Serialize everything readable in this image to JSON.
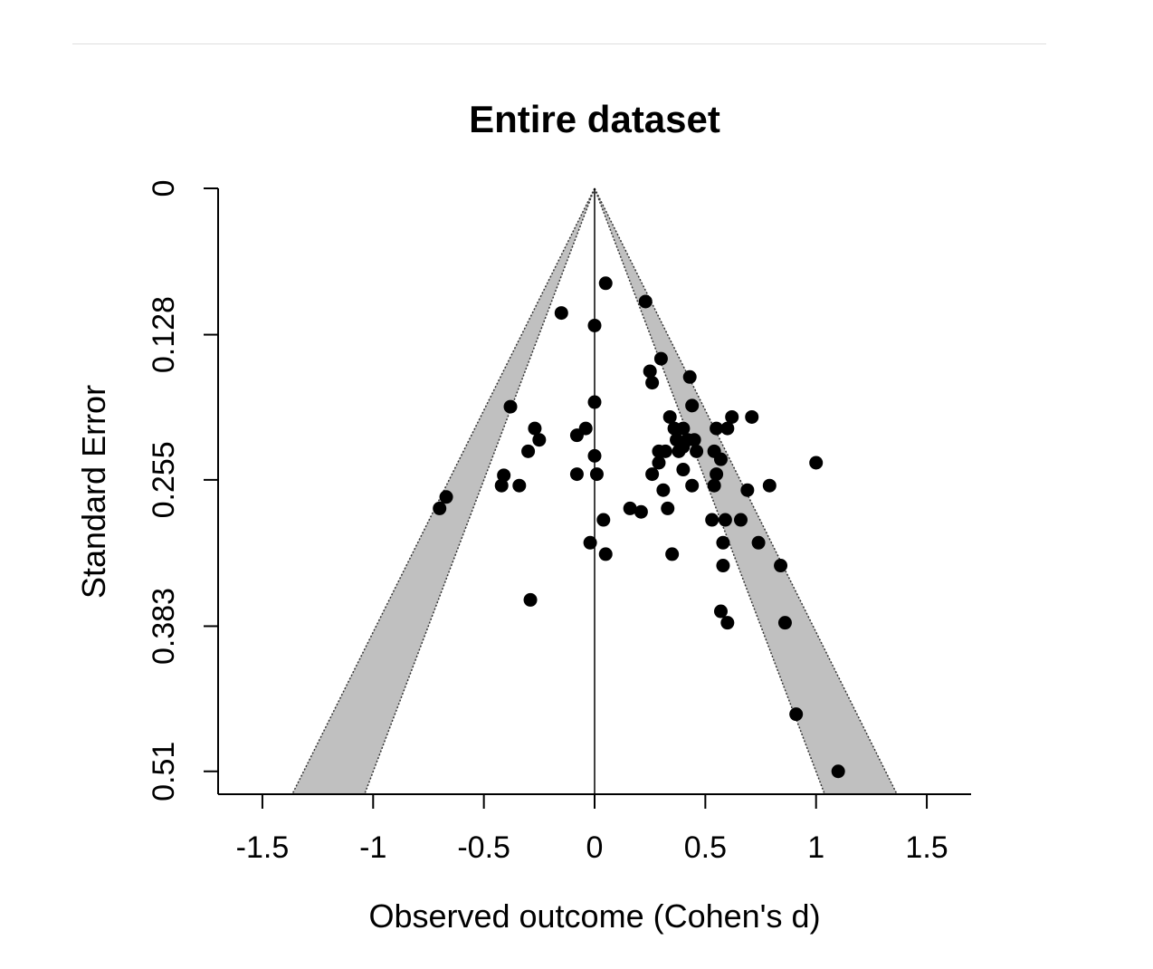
{
  "chart_data": {
    "type": "scatter",
    "subtype": "funnel",
    "title": "Entire dataset",
    "xlabel": "Observed outcome (Cohen's d)",
    "ylabel": "Standard Error",
    "xlim": [
      -1.7,
      1.7
    ],
    "ylim": [
      0.53,
      0
    ],
    "y_reversed": true,
    "x_ticks": [
      -1.5,
      -1,
      -0.5,
      0,
      0.5,
      1,
      1.5
    ],
    "x_tick_labels": [
      "-1.5",
      "-1",
      "-0.5",
      "0",
      "0.5",
      "1",
      "1.5"
    ],
    "y_ticks": [
      0,
      0.128,
      0.255,
      0.383,
      0.51
    ],
    "y_tick_labels": [
      "0",
      "0.128",
      "0.255",
      "0.383",
      "0.51"
    ],
    "funnel_center": 0,
    "funnel_inner_z": 1.96,
    "funnel_outer_z": 2.576,
    "funnel_fill": "#c0c0c0",
    "point_color": "#000000",
    "grid": false,
    "legend": "none",
    "points": [
      {
        "x": 0.05,
        "y": 0.083
      },
      {
        "x": 0.23,
        "y": 0.099
      },
      {
        "x": -0.15,
        "y": 0.109
      },
      {
        "x": 0.0,
        "y": 0.12
      },
      {
        "x": 0.3,
        "y": 0.149
      },
      {
        "x": 0.25,
        "y": 0.16
      },
      {
        "x": 0.26,
        "y": 0.17
      },
      {
        "x": 0.43,
        "y": 0.165
      },
      {
        "x": 0.0,
        "y": 0.187
      },
      {
        "x": -0.38,
        "y": 0.191
      },
      {
        "x": 0.44,
        "y": 0.19
      },
      {
        "x": 0.34,
        "y": 0.2
      },
      {
        "x": 0.62,
        "y": 0.2
      },
      {
        "x": 0.71,
        "y": 0.2
      },
      {
        "x": -0.27,
        "y": 0.21
      },
      {
        "x": -0.04,
        "y": 0.21
      },
      {
        "x": 0.36,
        "y": 0.21
      },
      {
        "x": 0.4,
        "y": 0.21
      },
      {
        "x": 0.55,
        "y": 0.21
      },
      {
        "x": 0.6,
        "y": 0.21
      },
      {
        "x": -0.08,
        "y": 0.216
      },
      {
        "x": -0.25,
        "y": 0.22
      },
      {
        "x": 0.37,
        "y": 0.22
      },
      {
        "x": 0.42,
        "y": 0.22
      },
      {
        "x": 0.45,
        "y": 0.22
      },
      {
        "x": 0.4,
        "y": 0.226
      },
      {
        "x": -0.3,
        "y": 0.23
      },
      {
        "x": 0.29,
        "y": 0.23
      },
      {
        "x": 0.32,
        "y": 0.23
      },
      {
        "x": 0.38,
        "y": 0.23
      },
      {
        "x": 0.46,
        "y": 0.23
      },
      {
        "x": 0.54,
        "y": 0.23
      },
      {
        "x": 0.0,
        "y": 0.234
      },
      {
        "x": 0.57,
        "y": 0.237
      },
      {
        "x": 0.29,
        "y": 0.24
      },
      {
        "x": 1.0,
        "y": 0.24
      },
      {
        "x": 0.4,
        "y": 0.246
      },
      {
        "x": -0.08,
        "y": 0.25
      },
      {
        "x": 0.01,
        "y": 0.25
      },
      {
        "x": 0.26,
        "y": 0.25
      },
      {
        "x": 0.55,
        "y": 0.25
      },
      {
        "x": -0.41,
        "y": 0.251
      },
      {
        "x": -0.42,
        "y": 0.26
      },
      {
        "x": -0.34,
        "y": 0.26
      },
      {
        "x": 0.44,
        "y": 0.26
      },
      {
        "x": 0.54,
        "y": 0.26
      },
      {
        "x": 0.79,
        "y": 0.26
      },
      {
        "x": 0.31,
        "y": 0.264
      },
      {
        "x": 0.69,
        "y": 0.264
      },
      {
        "x": -0.67,
        "y": 0.27
      },
      {
        "x": -0.7,
        "y": 0.28
      },
      {
        "x": 0.16,
        "y": 0.28
      },
      {
        "x": 0.33,
        "y": 0.28
      },
      {
        "x": 0.21,
        "y": 0.283
      },
      {
        "x": 0.04,
        "y": 0.29
      },
      {
        "x": 0.53,
        "y": 0.29
      },
      {
        "x": 0.59,
        "y": 0.29
      },
      {
        "x": 0.66,
        "y": 0.29
      },
      {
        "x": -0.02,
        "y": 0.31
      },
      {
        "x": 0.58,
        "y": 0.31
      },
      {
        "x": 0.74,
        "y": 0.31
      },
      {
        "x": 0.05,
        "y": 0.32
      },
      {
        "x": 0.35,
        "y": 0.32
      },
      {
        "x": 0.58,
        "y": 0.33
      },
      {
        "x": 0.84,
        "y": 0.33
      },
      {
        "x": -0.29,
        "y": 0.36
      },
      {
        "x": 0.57,
        "y": 0.37
      },
      {
        "x": 0.6,
        "y": 0.38
      },
      {
        "x": 0.86,
        "y": 0.38
      },
      {
        "x": 0.91,
        "y": 0.46
      },
      {
        "x": 1.1,
        "y": 0.51
      }
    ]
  }
}
